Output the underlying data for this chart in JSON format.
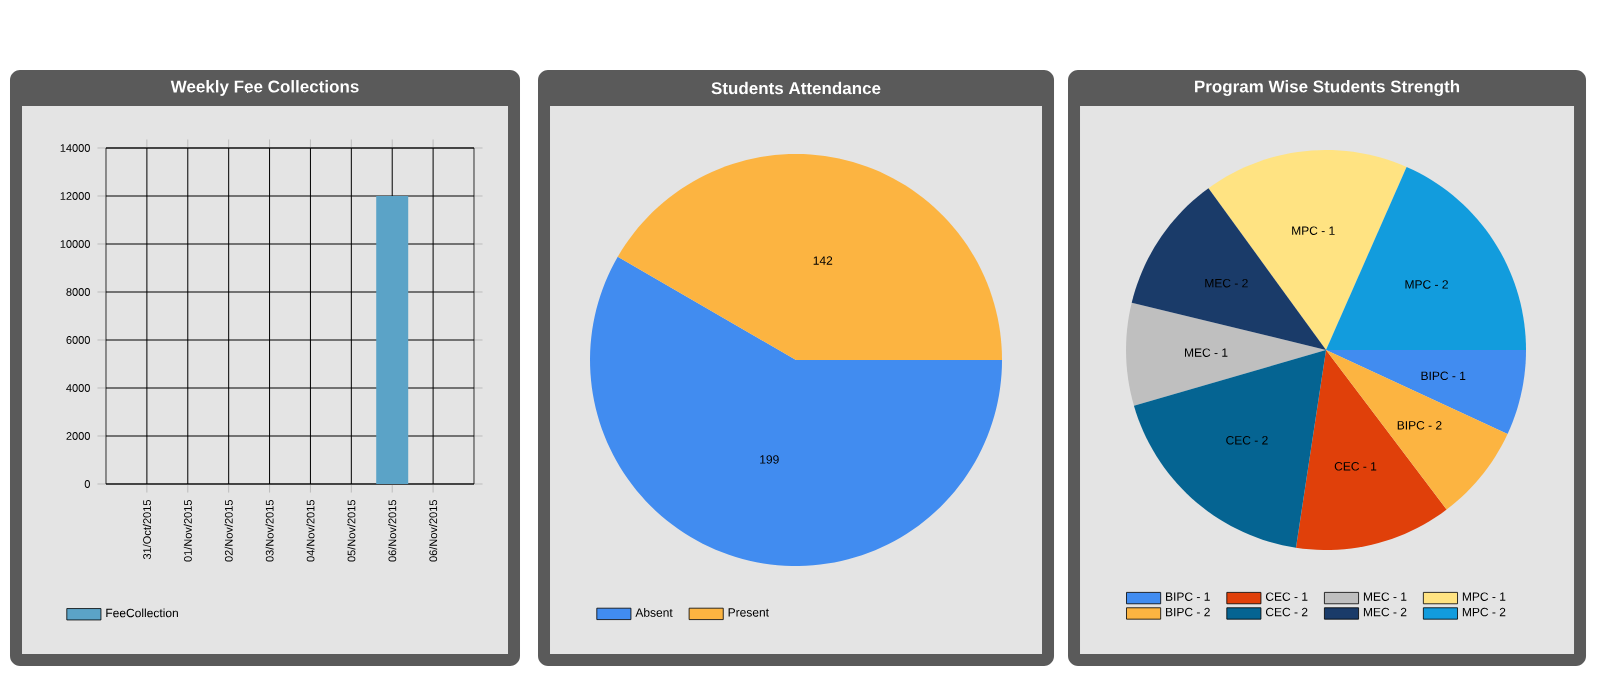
{
  "chart_data": [
    {
      "type": "bar",
      "title": "Weekly Fee Collections",
      "categories": [
        "31/Oct/2015",
        "01/Nov/2015",
        "02/Nov/2015",
        "03/Nov/2015",
        "04/Nov/2015",
        "05/Nov/2015",
        "06/Nov/2015",
        "06/Nov/2015"
      ],
      "series": [
        {
          "name": "FeeCollection",
          "color": "#5ba3c7",
          "values": [
            0,
            0,
            0,
            0,
            0,
            0,
            12000,
            0
          ]
        }
      ],
      "ylim": [
        0,
        14000
      ],
      "yticks": [
        0,
        2000,
        4000,
        6000,
        8000,
        10000,
        12000,
        14000
      ],
      "grid": true,
      "legend": "bottom left"
    },
    {
      "type": "pie",
      "title": "Students Attendance",
      "categories": [
        "Absent",
        "Present"
      ],
      "values": [
        199,
        142
      ],
      "colors": [
        "#418cf0",
        "#fcb441"
      ],
      "data_labels": true,
      "legend": "bottom left"
    },
    {
      "type": "pie",
      "title": "Program Wise Students Strength",
      "categories": [
        "BIPC - 1",
        "BIPC - 2",
        "CEC - 1",
        "CEC - 2",
        "MEC - 1",
        "MEC - 2",
        "MPC - 1",
        "MPC - 2"
      ],
      "values": [
        6.9,
        7.8,
        12.7,
        18.1,
        8.3,
        11.2,
        16.6,
        18.4
      ],
      "colors": [
        "#418cf0",
        "#fcb441",
        "#e0400a",
        "#056492",
        "#bfbfbf",
        "#1a3b69",
        "#ffe382",
        "#129cdd"
      ],
      "legend": "bottom"
    }
  ]
}
